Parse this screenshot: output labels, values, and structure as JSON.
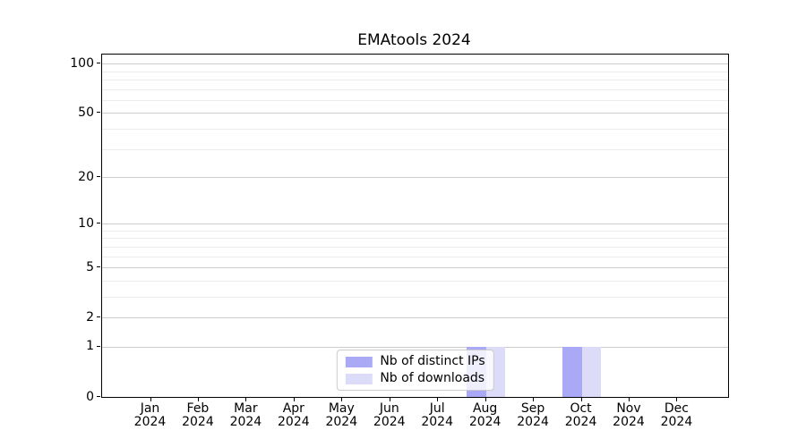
{
  "chart_data": {
    "type": "bar",
    "title": "EMAtools 2024",
    "categories": [
      "Jan 2024",
      "Feb 2024",
      "Mar 2024",
      "Apr 2024",
      "May 2024",
      "Jun 2024",
      "Jul 2024",
      "Aug 2024",
      "Sep 2024",
      "Oct 2024",
      "Nov 2024",
      "Dec 2024"
    ],
    "series": [
      {
        "name": "Nb of distinct IPs",
        "color": "#a9a9f5",
        "values": [
          0,
          0,
          0,
          0,
          0,
          0,
          0,
          1,
          0,
          1,
          0,
          0
        ]
      },
      {
        "name": "Nb of downloads",
        "color": "#dcdcf8",
        "values": [
          0,
          0,
          0,
          0,
          0,
          0,
          0,
          1,
          0,
          1,
          0,
          0
        ]
      }
    ],
    "xlabel": "",
    "ylabel": "",
    "yscale": "log1p",
    "ylim": [
      0,
      113.5
    ],
    "yticks_major": [
      0,
      1,
      2,
      5,
      10,
      20,
      50,
      100
    ],
    "yticks_minor": [
      3,
      4,
      6,
      7,
      8,
      9,
      30,
      40,
      60,
      70,
      80,
      90
    ],
    "grid": true,
    "legend": {
      "position": "lower center"
    },
    "colors": {
      "major_grid": "#cccccc",
      "minor_grid": "#ececec",
      "axis": "#000000",
      "legend_border": "#cccccc",
      "background": "#ffffff"
    }
  }
}
